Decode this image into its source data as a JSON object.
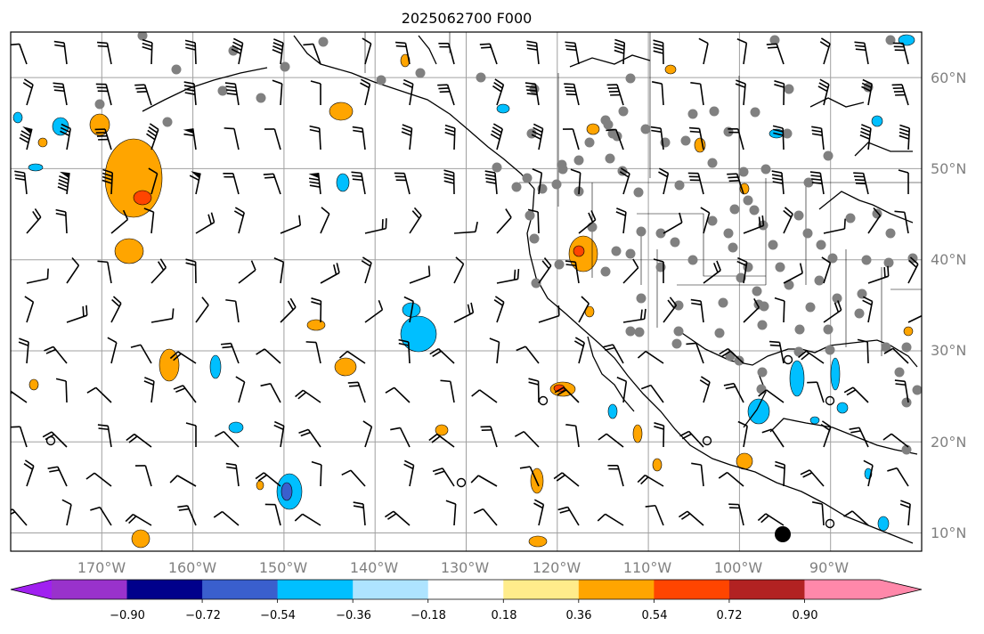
{
  "title": "2025062700 F000",
  "map": {
    "lon_range": [
      -180,
      -80
    ],
    "lat_range": [
      8,
      65
    ],
    "lon_labels": [
      "170°W",
      "160°W",
      "150°W",
      "140°W",
      "130°W",
      "120°W",
      "110°W",
      "100°W",
      "90°W"
    ],
    "lat_labels": [
      "60°N",
      "50°N",
      "40°N",
      "30°N",
      "20°N",
      "10°N"
    ],
    "gridline_color": "#a0a0a0",
    "coastline_color": "#000000",
    "station_color": "#808080"
  },
  "colorbar": {
    "tick_labels": [
      "−0.90",
      "−0.72",
      "−0.54",
      "−0.36",
      "−0.18",
      "0.18",
      "0.36",
      "0.54",
      "0.72",
      "0.90"
    ],
    "bins": [
      {
        "color": "#a020f0",
        "extend": "min"
      },
      {
        "color": "#9932cc"
      },
      {
        "color": "#00008b"
      },
      {
        "color": "#3a5fcd"
      },
      {
        "color": "#00bfff"
      },
      {
        "color": "#aee4ff"
      },
      {
        "color": "#ffffff"
      },
      {
        "color": "#ffec8b"
      },
      {
        "color": "#ffa500"
      },
      {
        "color": "#ff4500"
      },
      {
        "color": "#b22222"
      },
      {
        "color": "#ff88aa"
      },
      {
        "color": "#ff88aa",
        "extend": "max"
      }
    ]
  }
}
